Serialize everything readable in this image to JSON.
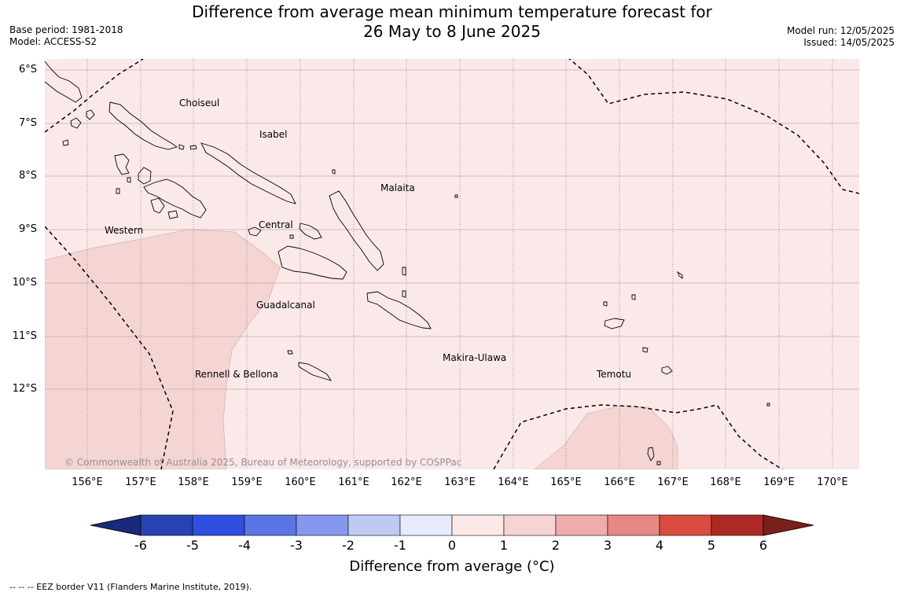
{
  "header": {
    "title_line1": "Difference from average mean minimum temperature forecast for",
    "title_line2": "26 May to 8 June 2025",
    "base_period": "Base period: 1981-2018",
    "model": "Model: ACCESS-S2",
    "model_run": "Model run: 12/05/2025",
    "issued": "Issued: 14/05/2025"
  },
  "map": {
    "latitude_labels": [
      "6°S",
      "7°S",
      "8°S",
      "9°S",
      "10°S",
      "11°S",
      "12°S"
    ],
    "longitude_labels": [
      "156°E",
      "157°E",
      "158°E",
      "159°E",
      "160°E",
      "161°E",
      "162°E",
      "163°E",
      "164°E",
      "165°E",
      "166°E",
      "167°E",
      "168°E",
      "169°E",
      "170°E"
    ],
    "province_labels": [
      "Choiseul",
      "Isabel",
      "Malaita",
      "Western",
      "Central",
      "Guadalcanal",
      "Makira-Ulawa",
      "Rennell & Bellona",
      "Temotu"
    ],
    "copyright": "© Commonwealth of Australia 2025, Bureau of Meteorology, supported by COSPPac",
    "background_category": "0 to 1",
    "anomaly_category": "1 to 2",
    "background_color": "#fbe9e9",
    "anomaly_color": "#f5d5d4"
  },
  "colorbar": {
    "ticks": [
      "-6",
      "-5",
      "-4",
      "-3",
      "-2",
      "-1",
      "0",
      "1",
      "2",
      "3",
      "4",
      "5",
      "6"
    ],
    "colors": [
      "#1a2a7a",
      "#2742b2",
      "#2f4fe0",
      "#5a75e6",
      "#8698ee",
      "#c0c8f4",
      "#e8ebfb",
      "#fde8e8",
      "#f6d4d3",
      "#eeadab",
      "#e68883",
      "#da4b41",
      "#ad2a24",
      "#7a1f1b"
    ],
    "label": "Difference from average (°C)"
  },
  "footnote": "--  --  -- EEZ border V11 (Flanders Marine Institute, 2019)."
}
